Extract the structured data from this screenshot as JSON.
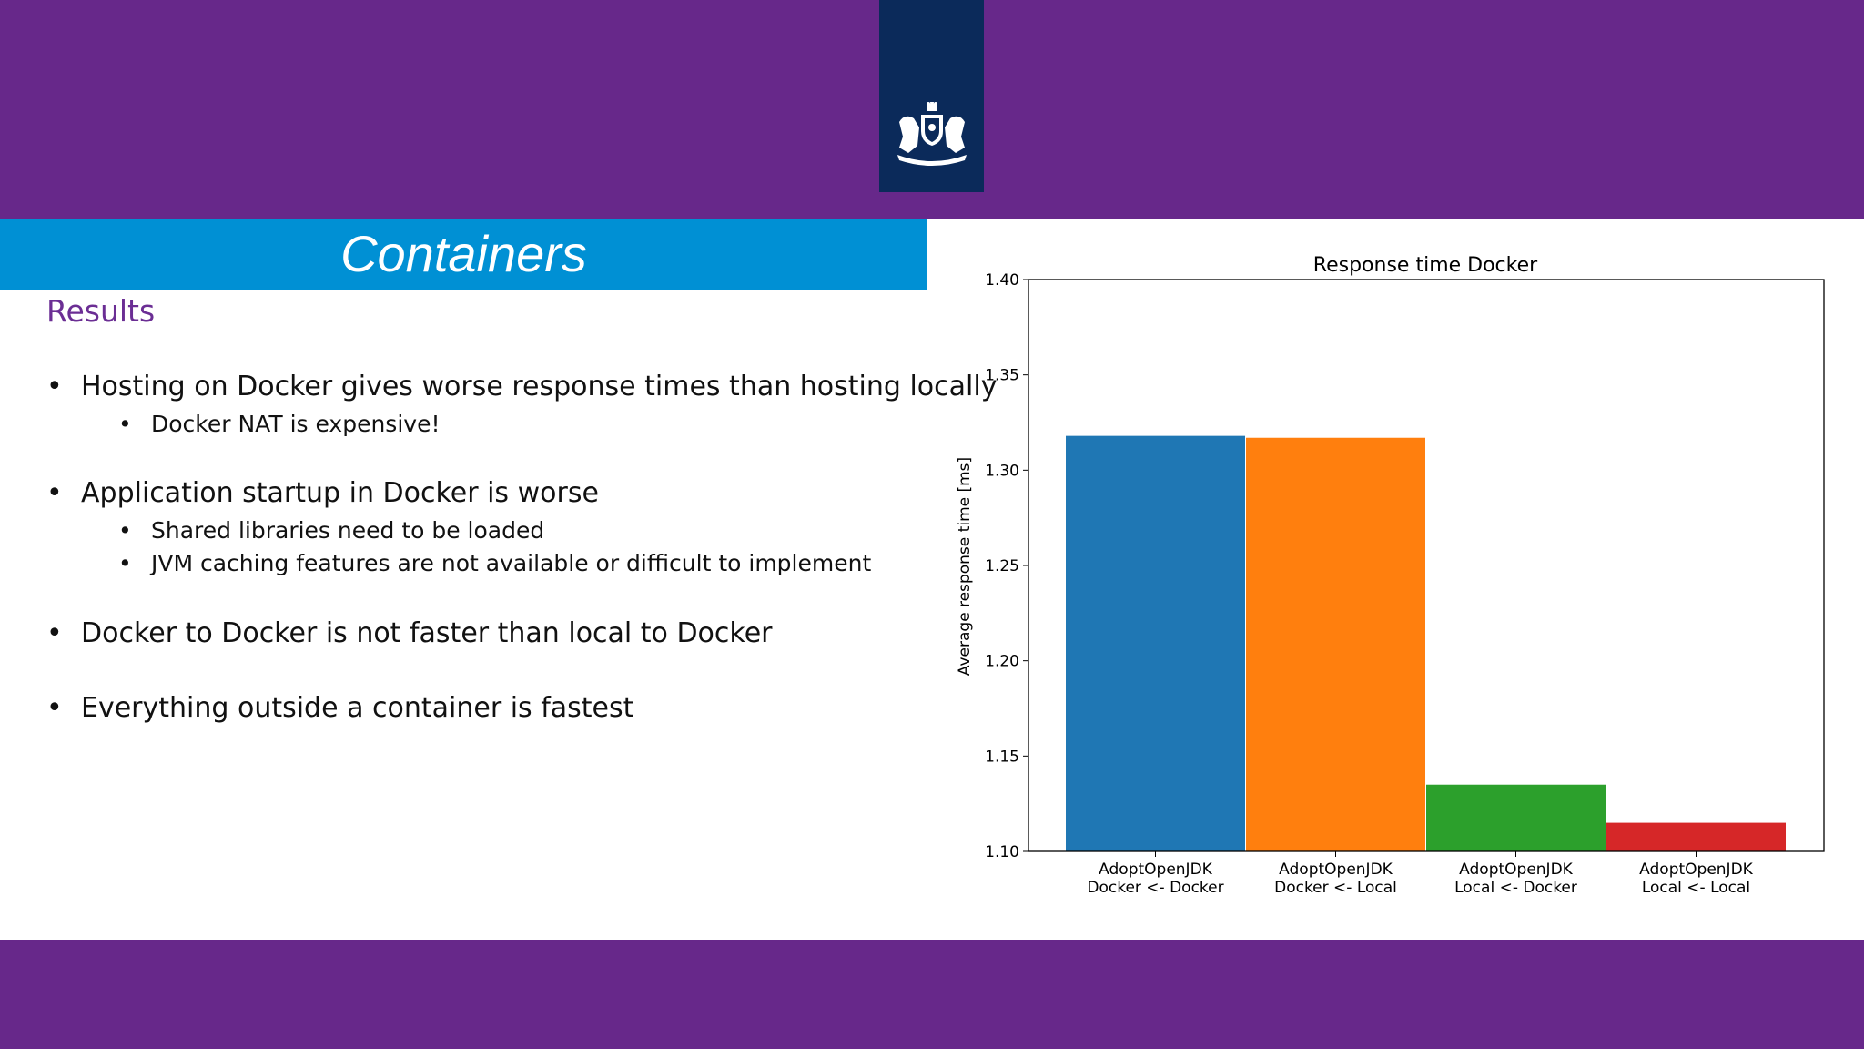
{
  "slide": {
    "title": "Containers",
    "subtitle": "Results",
    "colors": {
      "band": "#67288a",
      "title_bar": "#0090d4",
      "subtitle": "#6b2e94",
      "logo_bg": "#0b2a5a"
    }
  },
  "bullets": [
    {
      "level": 1,
      "text": "Hosting on Docker gives worse response times than hosting locally"
    },
    {
      "level": 2,
      "text": "Docker NAT is expensive!"
    },
    {
      "level": 1,
      "text": "Application startup in Docker is worse"
    },
    {
      "level": 2,
      "text": "Shared libraries need to be loaded"
    },
    {
      "level": 2,
      "text": "JVM caching features are not available or difficult to implement"
    },
    {
      "level": 1,
      "text": "Docker to Docker is not faster than local to Docker"
    },
    {
      "level": 1,
      "text": "Everything outside a container is fastest"
    }
  ],
  "chart_data": {
    "type": "bar",
    "title": "Response time Docker",
    "xlabel": "",
    "ylabel": "Average response time [ms]",
    "ylim": [
      1.1,
      1.4
    ],
    "yticks": [
      "1.10",
      "1.15",
      "1.20",
      "1.25",
      "1.30",
      "1.35",
      "1.40"
    ],
    "categories": [
      [
        "AdoptOpenJDK",
        "Docker <- Docker"
      ],
      [
        "AdoptOpenJDK",
        "Docker <- Local"
      ],
      [
        "AdoptOpenJDK",
        "Local <- Docker"
      ],
      [
        "AdoptOpenJDK",
        "Local <- Local"
      ]
    ],
    "values": [
      1.318,
      1.317,
      1.135,
      1.115
    ],
    "colors": [
      "#1f77b4",
      "#ff7f0e",
      "#2ca02c",
      "#d62728"
    ],
    "grid": false,
    "legend": "none"
  }
}
